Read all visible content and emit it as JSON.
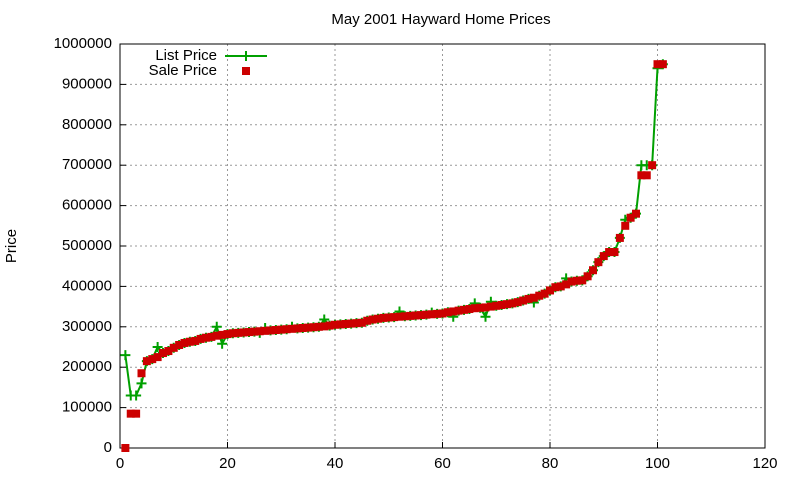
{
  "chart_data": {
    "type": "line",
    "title": "May 2001 Hayward Home Prices",
    "y_label": "Price",
    "x": [
      1,
      2,
      3,
      4,
      5,
      6,
      7,
      8,
      9,
      10,
      11,
      12,
      13,
      14,
      15,
      16,
      17,
      18,
      19,
      20,
      21,
      22,
      23,
      24,
      25,
      26,
      27,
      28,
      29,
      30,
      31,
      32,
      33,
      34,
      35,
      36,
      37,
      38,
      39,
      40,
      41,
      42,
      43,
      44,
      45,
      46,
      47,
      48,
      49,
      50,
      51,
      52,
      53,
      54,
      55,
      56,
      57,
      58,
      59,
      60,
      61,
      62,
      63,
      64,
      65,
      66,
      67,
      68,
      69,
      70,
      71,
      72,
      73,
      74,
      75,
      76,
      77,
      78,
      79,
      80,
      81,
      82,
      83,
      84,
      85,
      86,
      87,
      88,
      89,
      90,
      91,
      92,
      93,
      94,
      95,
      96,
      97,
      98,
      99,
      100,
      101
    ],
    "series": [
      {
        "name": "List Price",
        "color": "#00a000",
        "style": "linespoints",
        "values": [
          230000,
          130000,
          130000,
          160000,
          215000,
          220000,
          250000,
          235000,
          240000,
          248000,
          255000,
          260000,
          263000,
          265000,
          270000,
          273000,
          275000,
          300000,
          258000,
          282000,
          284000,
          285000,
          286000,
          287000,
          288000,
          285000,
          297000,
          291000,
          292000,
          293000,
          294000,
          300000,
          296000,
          297000,
          298000,
          299000,
          300000,
          318000,
          303000,
          305000,
          306000,
          307000,
          308000,
          309000,
          310000,
          315000,
          318000,
          320000,
          322000,
          323000,
          324000,
          338000,
          326000,
          327000,
          328000,
          329000,
          330000,
          335000,
          332000,
          333000,
          336000,
          325000,
          340000,
          342000,
          344000,
          358000,
          347000,
          325000,
          362000,
          352000,
          354000,
          356000,
          358000,
          361000,
          365000,
          369000,
          360000,
          377000,
          382000,
          390000,
          398000,
          400000,
          420000,
          412000,
          414000,
          415000,
          425000,
          440000,
          460000,
          475000,
          485000,
          485000,
          520000,
          565000,
          570000,
          580000,
          700000,
          700000,
          700000,
          940000,
          950000
        ]
      },
      {
        "name": "Sale Price",
        "color": "#cc0000",
        "style": "points",
        "values": [
          0,
          85000,
          85000,
          185000,
          215000,
          220000,
          225000,
          235000,
          240000,
          248000,
          255000,
          260000,
          263000,
          265000,
          270000,
          273000,
          275000,
          278000,
          280000,
          282000,
          284000,
          285000,
          286000,
          287000,
          288000,
          289000,
          290000,
          291000,
          292000,
          293000,
          294000,
          295000,
          296000,
          297000,
          298000,
          299000,
          300000,
          301000,
          303000,
          305000,
          306000,
          307000,
          308000,
          309000,
          310000,
          315000,
          318000,
          320000,
          322000,
          323000,
          324000,
          325000,
          326000,
          327000,
          328000,
          329000,
          330000,
          331000,
          332000,
          333000,
          336000,
          338000,
          340000,
          342000,
          344000,
          346000,
          347000,
          348000,
          350000,
          352000,
          354000,
          356000,
          358000,
          361000,
          365000,
          369000,
          372000,
          377000,
          382000,
          390000,
          398000,
          400000,
          405000,
          412000,
          414000,
          415000,
          425000,
          440000,
          460000,
          475000,
          485000,
          485000,
          520000,
          550000,
          570000,
          580000,
          675000,
          675000,
          700000,
          950000,
          950000
        ]
      }
    ],
    "xlim": [
      0,
      120
    ],
    "xticks": [
      0,
      20,
      40,
      60,
      80,
      100,
      120
    ],
    "ylim": [
      0,
      1000000
    ],
    "yticks": [
      0,
      100000,
      200000,
      300000,
      400000,
      500000,
      600000,
      700000,
      800000,
      900000,
      1000000
    ],
    "grid": true,
    "legend": "top-left"
  }
}
